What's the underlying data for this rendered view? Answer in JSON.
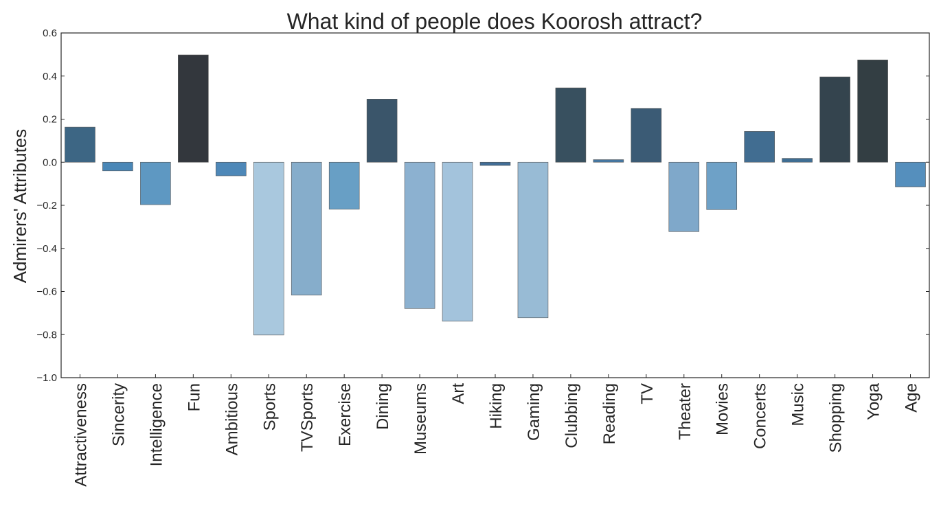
{
  "chart_data": {
    "type": "bar",
    "title": "What kind of people does Koorosh attract?",
    "xlabel": "",
    "ylabel": "Admirers' Attributes",
    "ylim": [
      -1.0,
      0.6
    ],
    "yticks": [
      -1.0,
      -0.8,
      -0.6,
      -0.4,
      -0.2,
      0.0,
      0.2,
      0.4,
      0.6
    ],
    "ytick_labels": [
      "−1.0",
      "−0.8",
      "−0.6",
      "−0.4",
      "−0.2",
      "0.0",
      "0.2",
      "0.4",
      "0.6"
    ],
    "grid": false,
    "legend": "none",
    "palette": "Blues_d (darker for higher value)",
    "categories": [
      "Attractiveness",
      "Sincerity",
      "Intelligence",
      "Fun",
      "Ambitious",
      "Sports",
      "TVSports",
      "Exercise",
      "Dining",
      "Museums",
      "Art",
      "Hiking",
      "Gaming",
      "Clubbing",
      "Reading",
      "TV",
      "Theater",
      "Movies",
      "Concerts",
      "Music",
      "Shopping",
      "Yoga",
      "Age"
    ],
    "values": [
      0.163,
      -0.04,
      -0.197,
      0.498,
      -0.063,
      -0.802,
      -0.617,
      -0.218,
      0.293,
      -0.679,
      -0.738,
      -0.015,
      -0.722,
      0.345,
      0.012,
      0.25,
      -0.322,
      -0.22,
      0.143,
      0.018,
      0.396,
      0.475,
      -0.114
    ],
    "colors": [
      "#3d6684",
      "#4a87b7",
      "#5e98c2",
      "#33373d",
      "#4e88b8",
      "#a9c8de",
      "#86adcb",
      "#689fc5",
      "#3a556a",
      "#8cb1d0",
      "#a3c3dc",
      "#416d96",
      "#98bbd5",
      "#38505f",
      "#4576a0",
      "#3b5b75",
      "#7fa8ca",
      "#6ea1c7",
      "#416d91",
      "#3f6e93",
      "#34444e",
      "#333e43",
      "#558fbd"
    ]
  }
}
